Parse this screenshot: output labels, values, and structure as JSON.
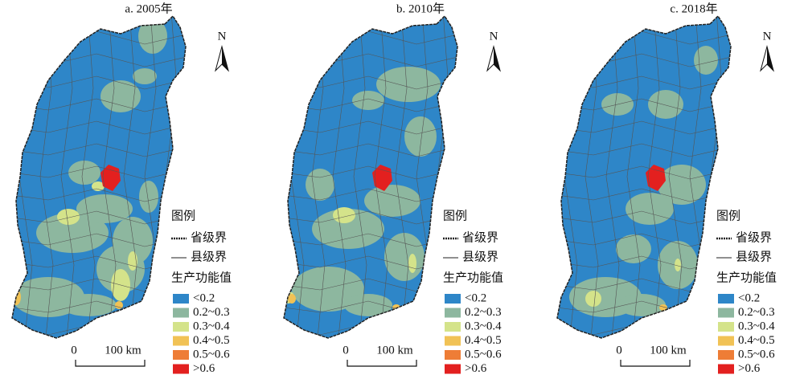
{
  "panels": [
    {
      "title": "a. 2005年",
      "north": "N",
      "scale": {
        "start": "0",
        "end": "100 km"
      },
      "legend": {
        "title": "图例",
        "boundaries": [
          "省级界",
          "县级界"
        ],
        "value_title": "生产功能值",
        "classes": [
          {
            "label": "<0.2",
            "color": "#2e86c8"
          },
          {
            "label": "0.2~0.3",
            "color": "#8db79f"
          },
          {
            "label": "0.3~0.4",
            "color": "#d4e38a"
          },
          {
            "label": "0.4~0.5",
            "color": "#f1c255"
          },
          {
            "label": "0.5~0.6",
            "color": "#ee7d36"
          },
          {
            "label": ">0.6",
            "color": "#e3201f"
          }
        ]
      }
    },
    {
      "title": "b. 2010年",
      "north": "N",
      "scale": {
        "start": "0",
        "end": "100 km"
      },
      "legend": {
        "title": "图例",
        "boundaries": [
          "省级界",
          "县级界"
        ],
        "value_title": "生产功能值",
        "classes": [
          {
            "label": "<0.2",
            "color": "#2e86c8"
          },
          {
            "label": "0.2~0.3",
            "color": "#8db79f"
          },
          {
            "label": "0.3~0.4",
            "color": "#d4e38a"
          },
          {
            "label": "0.4~0.5",
            "color": "#f1c255"
          },
          {
            "label": "0.5~0.6",
            "color": "#ee7d36"
          },
          {
            "label": ">0.6",
            "color": "#e3201f"
          }
        ]
      }
    },
    {
      "title": "c. 2018年",
      "north": "N",
      "scale": {
        "start": "0",
        "end": "100 km"
      },
      "legend": {
        "title": "图例",
        "boundaries": [
          "省级界",
          "县级界"
        ],
        "value_title": "生产功能值",
        "classes": [
          {
            "label": "<0.2",
            "color": "#2e86c8"
          },
          {
            "label": "0.2~0.3",
            "color": "#8db79f"
          },
          {
            "label": "0.3~0.4",
            "color": "#d4e38a"
          },
          {
            "label": "0.4~0.5",
            "color": "#f1c255"
          },
          {
            "label": "0.5~0.6",
            "color": "#ee7d36"
          },
          {
            "label": ">0.6",
            "color": "#e3201f"
          }
        ]
      }
    }
  ]
}
